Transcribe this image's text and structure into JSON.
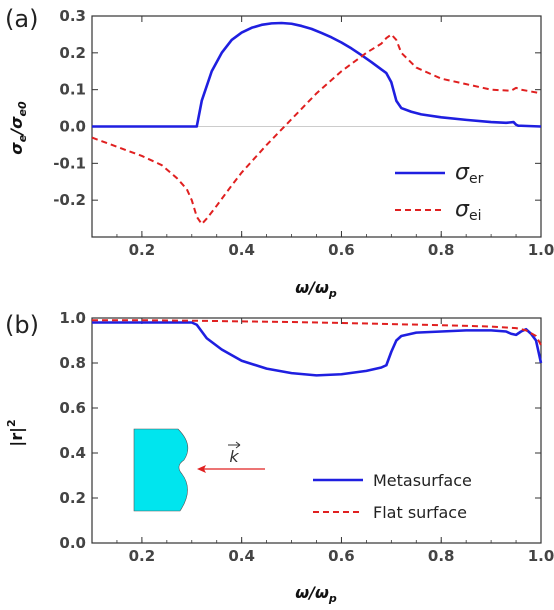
{
  "chart_data": [
    {
      "type": "line",
      "panel_label": "(a)",
      "xlabel": "ω/ω",
      "xlabel_sub": "p",
      "ylabel": "σ",
      "ylabel_sub1": "e",
      "ylabel_mid": "/σ",
      "ylabel_sub2": "e0",
      "xlim": [
        0.1,
        1.0
      ],
      "ylim": [
        -0.3,
        0.3
      ],
      "xticks": [
        "0.2",
        "0.4",
        "0.6",
        "0.8",
        "1.0"
      ],
      "xtick_values": [
        0.2,
        0.4,
        0.6,
        0.8,
        1.0
      ],
      "yticks": [
        "-0.2",
        "-0.1",
        "0.0",
        "0.1",
        "0.2",
        "0.3"
      ],
      "ytick_values": [
        -0.2,
        -0.1,
        0.0,
        0.1,
        0.2,
        0.3
      ],
      "legend_position": "bottom-right",
      "series": [
        {
          "name": "σ",
          "name_sub": "er",
          "color": "#1f1fe0",
          "dash": "solid",
          "x": [
            0.1,
            0.2,
            0.3,
            0.31,
            0.32,
            0.34,
            0.36,
            0.38,
            0.4,
            0.42,
            0.44,
            0.46,
            0.48,
            0.5,
            0.52,
            0.54,
            0.56,
            0.58,
            0.6,
            0.62,
            0.64,
            0.66,
            0.68,
            0.69,
            0.7,
            0.71,
            0.72,
            0.74,
            0.76,
            0.8,
            0.85,
            0.9,
            0.93,
            0.945,
            0.95,
            0.955,
            0.96,
            0.98,
            1.0
          ],
          "y": [
            0.0,
            0.0,
            0.0,
            0.0,
            0.07,
            0.15,
            0.2,
            0.235,
            0.255,
            0.268,
            0.276,
            0.28,
            0.281,
            0.279,
            0.273,
            0.265,
            0.254,
            0.242,
            0.228,
            0.212,
            0.194,
            0.175,
            0.155,
            0.145,
            0.12,
            0.07,
            0.05,
            0.04,
            0.033,
            0.025,
            0.018,
            0.012,
            0.01,
            0.012,
            0.005,
            0.002,
            0.002,
            0.001,
            0.0
          ]
        },
        {
          "name": "σ",
          "name_sub": "ei",
          "color": "#e02020",
          "dash": "dashed",
          "x": [
            0.1,
            0.15,
            0.2,
            0.24,
            0.27,
            0.29,
            0.3,
            0.31,
            0.32,
            0.33,
            0.35,
            0.38,
            0.4,
            0.45,
            0.5,
            0.55,
            0.6,
            0.65,
            0.68,
            0.69,
            0.7,
            0.71,
            0.72,
            0.75,
            0.8,
            0.85,
            0.9,
            0.94,
            0.95,
            0.96,
            1.0
          ],
          "y": [
            -0.03,
            -0.055,
            -0.08,
            -0.105,
            -0.14,
            -0.17,
            -0.2,
            -0.245,
            -0.265,
            -0.25,
            -0.215,
            -0.16,
            -0.125,
            -0.05,
            0.02,
            0.09,
            0.15,
            0.2,
            0.225,
            0.24,
            0.25,
            0.235,
            0.2,
            0.16,
            0.13,
            0.115,
            0.1,
            0.097,
            0.105,
            0.1,
            0.09
          ]
        }
      ]
    },
    {
      "type": "line",
      "panel_label": "(b)",
      "xlabel": "ω/ω",
      "xlabel_sub": "p",
      "ylabel": "|r|",
      "ylabel_sup": "2",
      "xlim": [
        0.1,
        1.0
      ],
      "ylim": [
        0.0,
        1.0
      ],
      "xticks": [
        "0.2",
        "0.4",
        "0.6",
        "0.8",
        "1.0"
      ],
      "xtick_values": [
        0.2,
        0.4,
        0.6,
        0.8,
        1.0
      ],
      "yticks": [
        "0.0",
        "0.2",
        "0.4",
        "0.6",
        "0.8",
        "1.0"
      ],
      "ytick_values": [
        0.0,
        0.2,
        0.4,
        0.6,
        0.8,
        1.0
      ],
      "legend_position": "bottom-right",
      "inset_label": "k",
      "series": [
        {
          "name": "Metasurface",
          "color": "#1f1fe0",
          "dash": "solid",
          "x": [
            0.1,
            0.2,
            0.3,
            0.31,
            0.33,
            0.36,
            0.4,
            0.45,
            0.5,
            0.55,
            0.6,
            0.65,
            0.68,
            0.69,
            0.7,
            0.71,
            0.72,
            0.75,
            0.8,
            0.85,
            0.9,
            0.93,
            0.94,
            0.95,
            0.96,
            0.97,
            0.98,
            0.99,
            1.0
          ],
          "y": [
            0.98,
            0.98,
            0.98,
            0.97,
            0.91,
            0.86,
            0.81,
            0.775,
            0.755,
            0.745,
            0.75,
            0.765,
            0.78,
            0.79,
            0.85,
            0.9,
            0.92,
            0.935,
            0.94,
            0.945,
            0.945,
            0.94,
            0.93,
            0.925,
            0.94,
            0.95,
            0.93,
            0.9,
            0.8
          ]
        },
        {
          "name": "Flat surface",
          "color": "#e02020",
          "dash": "dashed",
          "x": [
            0.1,
            0.2,
            0.3,
            0.4,
            0.5,
            0.6,
            0.7,
            0.8,
            0.9,
            0.95,
            0.97,
            0.99,
            1.0
          ],
          "y": [
            0.99,
            0.99,
            0.988,
            0.985,
            0.982,
            0.978,
            0.973,
            0.968,
            0.962,
            0.955,
            0.945,
            0.92,
            0.88
          ]
        }
      ]
    }
  ]
}
